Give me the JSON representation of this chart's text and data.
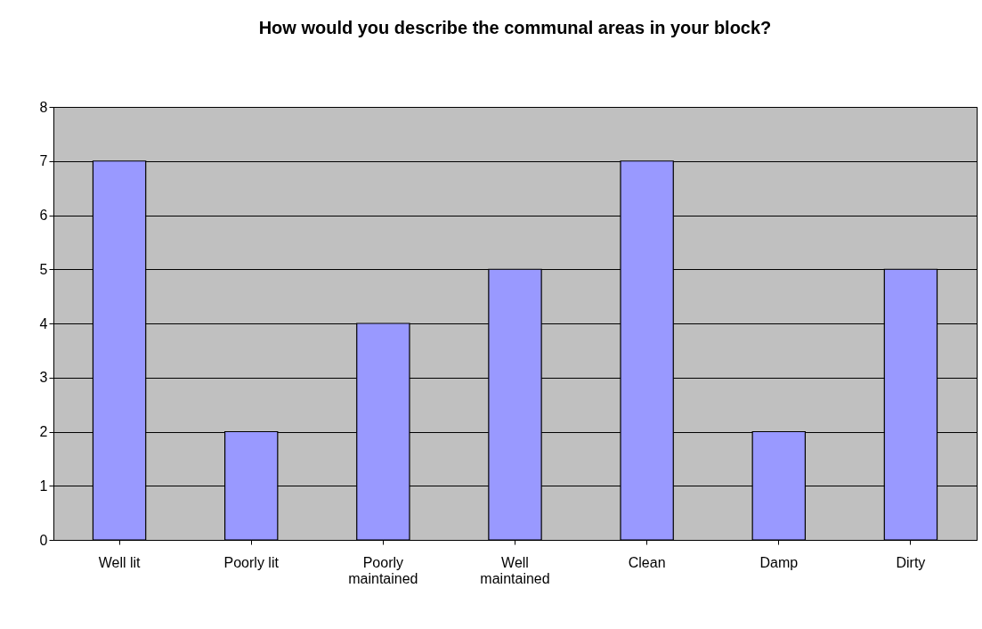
{
  "chart_data": {
    "type": "bar",
    "title": "How would you describe the communal areas in your block?",
    "categories": [
      "Well lit",
      "Poorly lit",
      "Poorly maintained",
      "Well maintained",
      "Clean",
      "Damp",
      "Dirty"
    ],
    "values": [
      7,
      2,
      4,
      5,
      7,
      2,
      5
    ],
    "color": "#9999ff",
    "ylim": [
      0,
      8
    ],
    "yticks": [
      0,
      1,
      2,
      3,
      4,
      5,
      6,
      7,
      8
    ],
    "grid": "y"
  }
}
